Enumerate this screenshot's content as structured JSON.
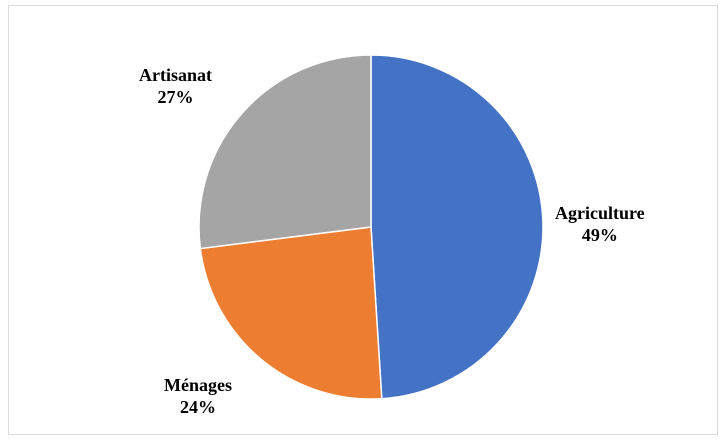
{
  "chart_data": {
    "type": "pie",
    "title": "",
    "slices": [
      {
        "label": "Agriculture",
        "value": 49,
        "percent_text": "49%",
        "color": "#4472C4"
      },
      {
        "label": "Ménages",
        "value": 24,
        "percent_text": "24%",
        "color": "#ED7D31"
      },
      {
        "label": "Artisanat",
        "value": 27,
        "percent_text": "27%",
        "color": "#A5A5A5"
      }
    ],
    "start_angle": "12 o'clock",
    "direction": "clockwise",
    "legend": "none",
    "data_labels": "outside"
  }
}
